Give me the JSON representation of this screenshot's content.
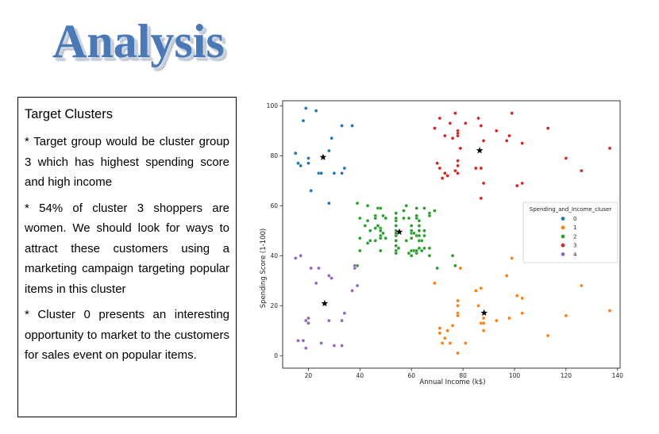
{
  "title": "Analysis",
  "textbox": {
    "heading": "Target Clusters",
    "paragraphs": [
      "* Target group would be cluster group 3 which has highest spending score and high income",
      "* 54% of cluster 3 shoppers are women. We should look for ways to attract these customers using a marketing campaign targeting popular items in this cluster",
      "* Cluster 0 presents an interesting opportunity to market to the customers for sales event on popular items."
    ]
  },
  "chart_data": {
    "type": "scatter",
    "xlabel": "Annual Income (k$)",
    "ylabel": "Spending Score (1-100)",
    "xlim": [
      10,
      141
    ],
    "ylim": [
      -5,
      102
    ],
    "xticks": [
      20,
      40,
      60,
      80,
      100,
      120,
      140
    ],
    "yticks": [
      0,
      20,
      40,
      60,
      80,
      100
    ],
    "grid": false,
    "legend": {
      "title": "Spending_and_Income_cluser",
      "placement": "right"
    },
    "series": [
      {
        "name": "0",
        "color": "#1f77b4",
        "points": [
          [
            15,
            81
          ],
          [
            16,
            77
          ],
          [
            17,
            76
          ],
          [
            18,
            94
          ],
          [
            19,
            99
          ],
          [
            20,
            77
          ],
          [
            20,
            79
          ],
          [
            21,
            66
          ],
          [
            23,
            98
          ],
          [
            24,
            73
          ],
          [
            25,
            73
          ],
          [
            28,
            82
          ],
          [
            28,
            61
          ],
          [
            29,
            87
          ],
          [
            30,
            73
          ],
          [
            33,
            73
          ],
          [
            33,
            92
          ],
          [
            34,
            75
          ],
          [
            37,
            92
          ]
        ]
      },
      {
        "name": "1",
        "color": "#ff7f0e",
        "points": [
          [
            69,
            29
          ],
          [
            71,
            11
          ],
          [
            71,
            9
          ],
          [
            72,
            5
          ],
          [
            73,
            7
          ],
          [
            74,
            10
          ],
          [
            75,
            5
          ],
          [
            76,
            12
          ],
          [
            77,
            36
          ],
          [
            78,
            22
          ],
          [
            78,
            17
          ],
          [
            78,
            20
          ],
          [
            78,
            16
          ],
          [
            78,
            1
          ],
          [
            79,
            35
          ],
          [
            81,
            5
          ],
          [
            85,
            26
          ],
          [
            86,
            20
          ],
          [
            87,
            27
          ],
          [
            87,
            13
          ],
          [
            88,
            10
          ],
          [
            88,
            13
          ],
          [
            88,
            15
          ],
          [
            93,
            14
          ],
          [
            97,
            32
          ],
          [
            98,
            15
          ],
          [
            99,
            39
          ],
          [
            101,
            24
          ],
          [
            103,
            17
          ],
          [
            103,
            23
          ],
          [
            113,
            8
          ],
          [
            120,
            16
          ],
          [
            126,
            28
          ],
          [
            137,
            18
          ]
        ]
      },
      {
        "name": "2",
        "color": "#2ca02c",
        "points": [
          [
            38,
            35
          ],
          [
            39,
            36
          ],
          [
            39,
            61
          ],
          [
            40,
            55
          ],
          [
            40,
            47
          ],
          [
            40,
            42
          ],
          [
            42,
            52
          ],
          [
            43,
            60
          ],
          [
            43,
            54
          ],
          [
            43,
            45
          ],
          [
            44,
            50
          ],
          [
            44,
            46
          ],
          [
            46,
            51
          ],
          [
            46,
            46
          ],
          [
            46,
            56
          ],
          [
            46,
            55
          ],
          [
            47,
            52
          ],
          [
            47,
            59
          ],
          [
            48,
            51
          ],
          [
            48,
            59
          ],
          [
            48,
            50
          ],
          [
            48,
            48
          ],
          [
            48,
            47
          ],
          [
            48,
            42
          ],
          [
            49,
            49
          ],
          [
            49,
            56
          ],
          [
            50,
            47
          ],
          [
            50,
            55
          ],
          [
            54,
            42
          ],
          [
            54,
            54
          ],
          [
            54,
            46
          ],
          [
            54,
            48
          ],
          [
            54,
            50
          ],
          [
            54,
            57
          ],
          [
            54,
            55
          ],
          [
            54,
            41
          ],
          [
            54,
            44
          ],
          [
            54,
            49
          ],
          [
            54,
            52
          ],
          [
            55,
            43
          ],
          [
            57,
            58
          ],
          [
            57,
            55
          ],
          [
            58,
            60
          ],
          [
            58,
            46
          ],
          [
            59,
            55
          ],
          [
            59,
            41
          ],
          [
            60,
            49
          ],
          [
            60,
            40
          ],
          [
            60,
            42
          ],
          [
            60,
            52
          ],
          [
            60,
            47
          ],
          [
            60,
            50
          ],
          [
            61,
            42
          ],
          [
            61,
            49
          ],
          [
            62,
            41
          ],
          [
            62,
            48
          ],
          [
            62,
            59
          ],
          [
            62,
            55
          ],
          [
            62,
            56
          ],
          [
            62,
            42
          ],
          [
            63,
            50
          ],
          [
            63,
            46
          ],
          [
            63,
            43
          ],
          [
            63,
            48
          ],
          [
            63,
            52
          ],
          [
            63,
            54
          ],
          [
            64,
            42
          ],
          [
            64,
            46
          ],
          [
            65,
            48
          ],
          [
            65,
            50
          ],
          [
            65,
            43
          ],
          [
            65,
            59
          ],
          [
            67,
            43
          ],
          [
            67,
            57
          ],
          [
            67,
            56
          ],
          [
            67,
            40
          ],
          [
            69,
            58
          ],
          [
            70,
            35
          ],
          [
            76,
            40
          ],
          [
            77,
            36
          ]
        ]
      },
      {
        "name": "3",
        "color": "#d62728",
        "points": [
          [
            69,
            91
          ],
          [
            70,
            77
          ],
          [
            71,
            95
          ],
          [
            71,
            75
          ],
          [
            71,
            75
          ],
          [
            72,
            71
          ],
          [
            73,
            88
          ],
          [
            73,
            73
          ],
          [
            74,
            72
          ],
          [
            75,
            93
          ],
          [
            76,
            87
          ],
          [
            77,
            97
          ],
          [
            77,
            74
          ],
          [
            78,
            90
          ],
          [
            78,
            88
          ],
          [
            78,
            76
          ],
          [
            78,
            89
          ],
          [
            78,
            78
          ],
          [
            78,
            73
          ],
          [
            79,
            83
          ],
          [
            81,
            93
          ],
          [
            85,
            75
          ],
          [
            86,
            95
          ],
          [
            87,
            63
          ],
          [
            87,
            75
          ],
          [
            87,
            92
          ],
          [
            88,
            86
          ],
          [
            88,
            69
          ],
          [
            93,
            90
          ],
          [
            97,
            86
          ],
          [
            98,
            88
          ],
          [
            99,
            97
          ],
          [
            101,
            68
          ],
          [
            103,
            85
          ],
          [
            103,
            69
          ],
          [
            113,
            91
          ],
          [
            120,
            79
          ],
          [
            126,
            74
          ],
          [
            137,
            83
          ]
        ]
      },
      {
        "name": "4",
        "color": "#9467bd",
        "points": [
          [
            15,
            39
          ],
          [
            16,
            6
          ],
          [
            17,
            40
          ],
          [
            18,
            6
          ],
          [
            19,
            3
          ],
          [
            19,
            14
          ],
          [
            20,
            15
          ],
          [
            20,
            13
          ],
          [
            21,
            35
          ],
          [
            23,
            29
          ],
          [
            24,
            35
          ],
          [
            25,
            5
          ],
          [
            28,
            14
          ],
          [
            28,
            32
          ],
          [
            29,
            31
          ],
          [
            30,
            4
          ],
          [
            33,
            4
          ],
          [
            33,
            14
          ],
          [
            34,
            17
          ],
          [
            37,
            26
          ],
          [
            38,
            35
          ],
          [
            39,
            28
          ],
          [
            38,
            36
          ]
        ]
      }
    ],
    "centroids": [
      [
        25.7,
        79.4
      ],
      [
        88.2,
        17.1
      ],
      [
        55.3,
        49.5
      ],
      [
        86.5,
        82.1
      ],
      [
        26.3,
        20.9
      ]
    ]
  }
}
